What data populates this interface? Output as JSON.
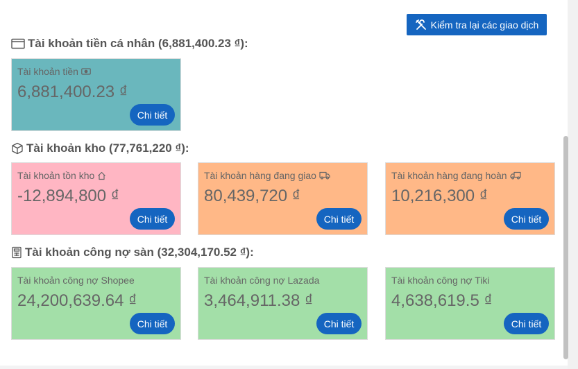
{
  "toolbar": {
    "review_label": "Kiểm tra lại các giao dịch"
  },
  "sections": [
    {
      "title": "Tài khoản tiền cá nhân (6,881,400.23 ₫):",
      "cards": [
        {
          "label": "Tài khoản tiền",
          "value": "6,881,400.23 ₫",
          "button": "Chi tiết",
          "color": "#6ab7bd"
        }
      ]
    },
    {
      "title": "Tài khoản kho (77,761,220 ₫):",
      "cards": [
        {
          "label": "Tài khoản tồn kho",
          "value": "-12,894,800 ₫",
          "button": "Chi tiết",
          "color": "#ffb6c3"
        },
        {
          "label": "Tài khoản hàng đang giao",
          "value": "80,439,720 ₫",
          "button": "Chi tiết",
          "color": "#ffb887"
        },
        {
          "label": "Tài khoản hàng đang hoàn",
          "value": "10,216,300 ₫",
          "button": "Chi tiết",
          "color": "#ffb887"
        }
      ]
    },
    {
      "title": "Tài khoản công nợ sàn (32,304,170.52 ₫):",
      "cards": [
        {
          "label": "Tài khoản công nợ Shopee",
          "value": "24,200,639.64 ₫",
          "button": "Chi tiết",
          "color": "#a3dfa8"
        },
        {
          "label": "Tài khoản công nợ Lazada",
          "value": "3,464,911.38 ₫",
          "button": "Chi tiết",
          "color": "#a3dfa8"
        },
        {
          "label": "Tài khoản công nợ Tiki",
          "value": "4,638,619.5 ₫",
          "button": "Chi tiết",
          "color": "#a3dfa8"
        }
      ]
    }
  ],
  "icons": {
    "review": "tools-icon",
    "section_cash": "wallet-icon",
    "section_inventory": "box-icon",
    "section_debt": "calculator-icon",
    "card_cash": "cash-icon",
    "card_stock": "home-icon",
    "card_delivering": "truck-icon",
    "card_returning": "truck-return-icon"
  }
}
